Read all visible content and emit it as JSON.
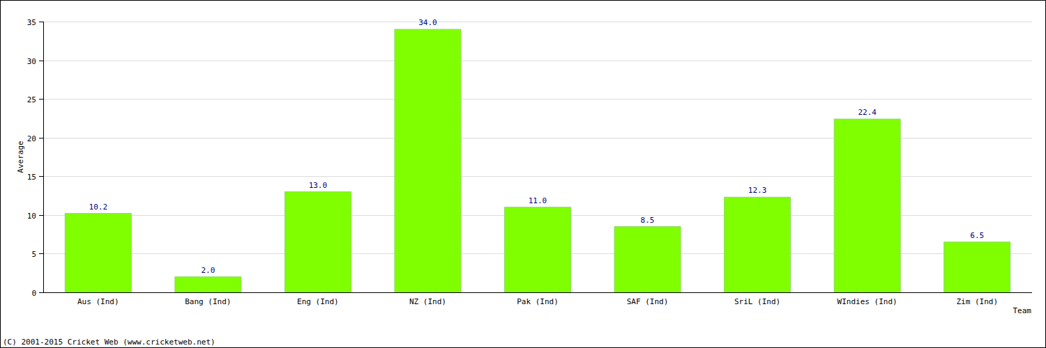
{
  "chart_data": {
    "type": "bar",
    "categories": [
      "Aus (Ind)",
      "Bang (Ind)",
      "Eng (Ind)",
      "NZ (Ind)",
      "Pak (Ind)",
      "SAF (Ind)",
      "SriL (Ind)",
      "WIndies (Ind)",
      "Zim (Ind)"
    ],
    "values": [
      10.2,
      2.0,
      13.0,
      34.0,
      11.0,
      8.5,
      12.3,
      22.4,
      6.5
    ],
    "value_labels": [
      "10.2",
      "2.0",
      "13.0",
      "34.0",
      "11.0",
      "8.5",
      "12.3",
      "22.4",
      "6.5"
    ],
    "color": "#7fff00",
    "y_label": "Average",
    "x_label": "Team",
    "annotations": [
      "(C) 2001-2015 Cricket Web (www.cricketweb.net)"
    ],
    "ylim": [
      0,
      35
    ],
    "yticks": [
      0,
      5,
      10,
      15,
      20,
      25,
      30,
      35
    ],
    "grid": true,
    "data_labels": true
  }
}
